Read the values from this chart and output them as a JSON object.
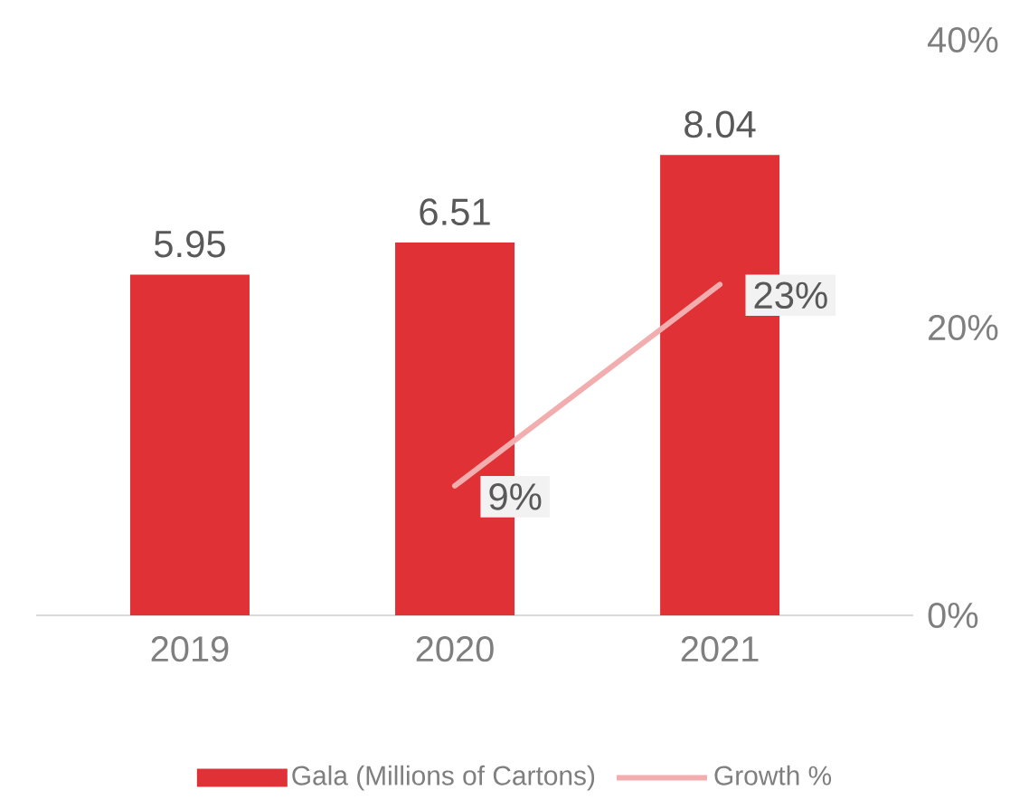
{
  "chart_data": {
    "type": "bar",
    "categories": [
      "2019",
      "2020",
      "2021"
    ],
    "series": [
      {
        "name": "Gala (Millions of Cartons)",
        "color": "#e03236",
        "values": [
          5.95,
          6.51,
          8.04
        ],
        "value_labels": [
          "5.95",
          "6.51",
          "8.04"
        ]
      },
      {
        "name": "Growth %",
        "type": "line",
        "axis": "y2",
        "color": "#f2aeae",
        "values": [
          null,
          9,
          23
        ],
        "value_labels": [
          null,
          "9%",
          "23%"
        ]
      }
    ],
    "y2lim": [
      0,
      40
    ],
    "y2ticks": [
      {
        "value": 0,
        "label": "0%"
      },
      {
        "value": 20,
        "label": "20%"
      },
      {
        "value": 40,
        "label": "40%"
      }
    ],
    "grid": false,
    "legend": "bottom",
    "marker": "none",
    "line_style": "solid"
  }
}
